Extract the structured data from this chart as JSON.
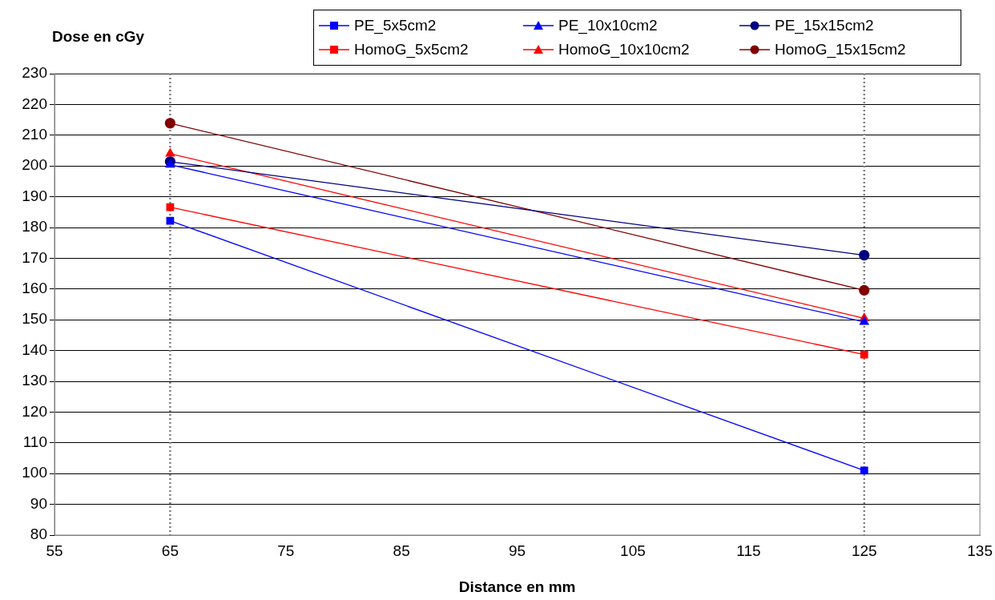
{
  "chart_data": {
    "type": "line",
    "xlabel": "Distance en mm",
    "ylabel": "Dose en cGy",
    "x": [
      65,
      125
    ],
    "series": [
      {
        "name": "PE_5x5cm2",
        "color": "#0000ff",
        "marker": "square",
        "values": [
          182.2,
          101
        ]
      },
      {
        "name": "PE_10x10cm2",
        "color": "#0000ff",
        "marker": "triangle",
        "values": [
          200.4,
          149.3
        ]
      },
      {
        "name": "PE_15x15cm2",
        "color": "#000080",
        "marker": "circle",
        "values": [
          201.4,
          171
        ]
      },
      {
        "name": "HomoG_5x5cm2",
        "color": "#ff0000",
        "marker": "square",
        "values": [
          186.6,
          138.7
        ]
      },
      {
        "name": "HomoG_10x10cm2",
        "color": "#ff0000",
        "marker": "triangle",
        "values": [
          204,
          150.5
        ]
      },
      {
        "name": "HomoG_15x15cm2",
        "color": "#800000",
        "marker": "circle",
        "values": [
          213.9,
          159.6
        ]
      }
    ],
    "xlim": [
      55,
      135
    ],
    "xticks": [
      55,
      65,
      75,
      85,
      95,
      105,
      115,
      125,
      135
    ],
    "ylim": [
      80,
      230
    ],
    "yticks": [
      80,
      90,
      100,
      110,
      120,
      130,
      140,
      150,
      160,
      170,
      180,
      190,
      200,
      210,
      220,
      230
    ],
    "grid": "y",
    "legend": "top right",
    "line_style": "solid",
    "ref_lines": [
      {
        "axis": "x",
        "value": 65,
        "color": "#808080",
        "line_style": "dotted"
      },
      {
        "axis": "x",
        "value": 125,
        "color": "#808080",
        "line_style": "dotted"
      }
    ]
  }
}
